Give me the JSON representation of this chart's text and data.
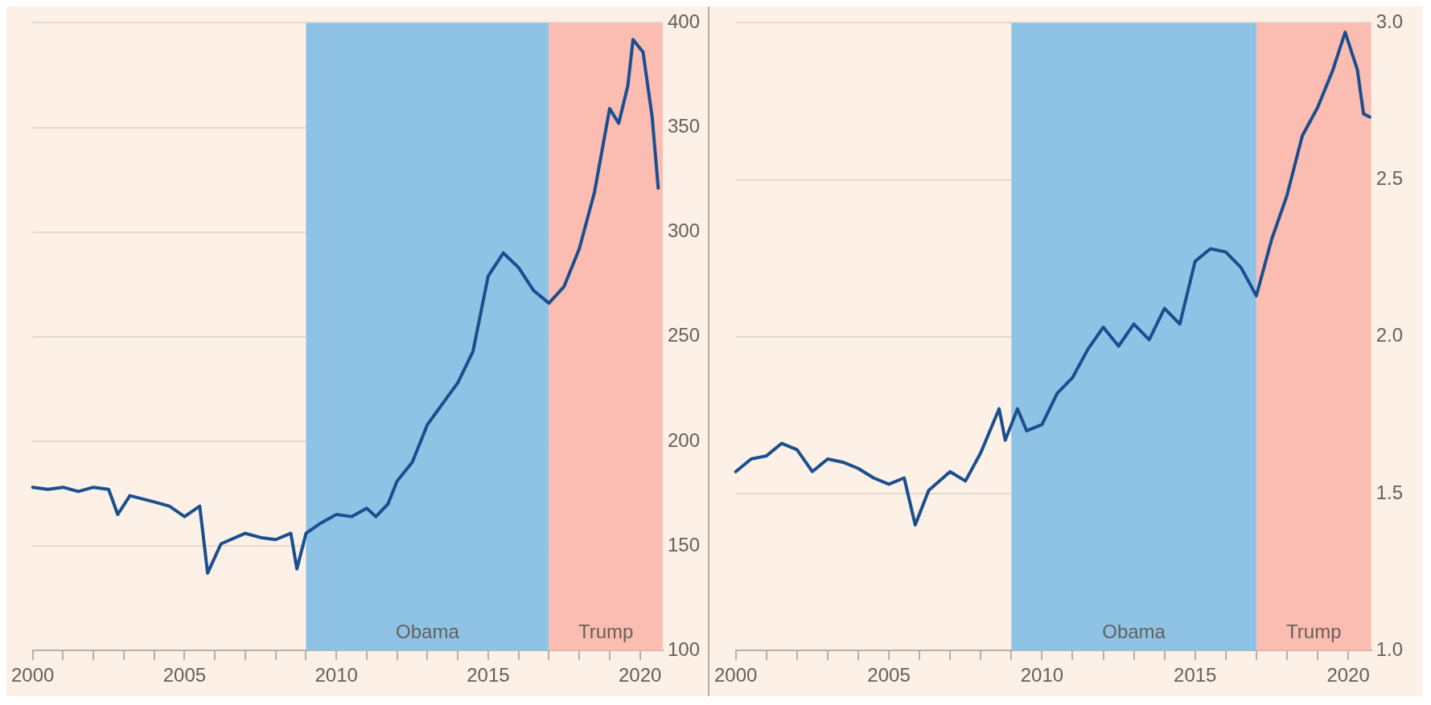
{
  "chart_data": [
    {
      "type": "line",
      "x": [
        2000,
        2000.5,
        2001,
        2001.5,
        2002,
        2002.5,
        2002.8,
        2003.2,
        2004,
        2004.5,
        2005,
        2005.5,
        2005.76,
        2006.2,
        2007,
        2007.5,
        2008,
        2008.5,
        2008.7,
        2009,
        2009.5,
        2010,
        2010.5,
        2011,
        2011.3,
        2011.7,
        2012,
        2012.5,
        2013,
        2013.3,
        2014,
        2014.5,
        2015,
        2015.5,
        2016,
        2016.5,
        2017,
        2017.5,
        2018,
        2018.5,
        2019,
        2019.3,
        2019.6,
        2019.77,
        2020.1,
        2020.4,
        2020.6
      ],
      "series": [
        {
          "color": "#1a4f8f",
          "values": [
            178,
            177,
            178,
            176,
            178,
            177,
            165,
            174,
            171,
            169,
            164,
            169,
            137,
            151,
            156,
            154,
            153,
            156,
            139,
            156,
            161,
            165,
            164,
            168,
            164,
            170,
            181,
            190,
            208,
            214,
            228,
            243,
            279,
            290,
            283,
            272,
            266,
            274,
            292,
            319,
            359,
            352,
            370,
            392,
            386,
            355,
            321
          ]
        }
      ],
      "xlim": [
        2000,
        2020.75
      ],
      "xticks": [
        2000,
        {
          "value": 2001,
          "label": null
        },
        {
          "value": 2002,
          "label": null
        },
        {
          "value": 2003,
          "label": null
        },
        {
          "value": 2004,
          "label": null
        },
        2005,
        {
          "value": 2006,
          "label": null
        },
        {
          "value": 2007,
          "label": null
        },
        {
          "value": 2008,
          "label": null
        },
        {
          "value": 2009,
          "label": null
        },
        2010,
        {
          "value": 2011,
          "label": null
        },
        {
          "value": 2012,
          "label": null
        },
        {
          "value": 2013,
          "label": null
        },
        {
          "value": 2014,
          "label": null
        },
        2015,
        {
          "value": 2016,
          "label": null
        },
        {
          "value": 2017,
          "label": null
        },
        {
          "value": 2018,
          "label": null
        },
        {
          "value": 2019,
          "label": null
        },
        2020
      ],
      "ylim": [
        100,
        400
      ],
      "yticks": [
        100,
        150,
        200,
        250,
        300,
        350,
        400
      ],
      "bands": [
        {
          "axis": "x",
          "from": 2009,
          "to": 2017,
          "label": "Obama",
          "color": "#8ec3e6"
        },
        {
          "axis": "x",
          "from": 2017,
          "to": 2020.75,
          "label": "Trump",
          "color": "#fbbcb2"
        }
      ],
      "grid": "y",
      "legend": false,
      "marker": "none",
      "line_style": "solid"
    },
    {
      "type": "line",
      "x": [
        2000,
        2000.5,
        2001,
        2001.5,
        2002,
        2002.5,
        2003,
        2003.5,
        2004,
        2004.5,
        2005,
        2005.5,
        2005.86,
        2006.3,
        2007,
        2007.5,
        2008,
        2008.6,
        2008.8,
        2009.2,
        2009.5,
        2010,
        2010.5,
        2011,
        2011.5,
        2012,
        2012.5,
        2013,
        2013.5,
        2014,
        2014.5,
        2015,
        2015.5,
        2016,
        2016.5,
        2017,
        2017.5,
        2018,
        2018.5,
        2019,
        2019.5,
        2019.9,
        2020.3,
        2020.5,
        2020.7
      ],
      "series": [
        {
          "color": "#1a4f8f",
          "values": [
            1.57,
            1.61,
            1.62,
            1.66,
            1.64,
            1.57,
            1.61,
            1.6,
            1.58,
            1.55,
            1.53,
            1.55,
            1.4,
            1.51,
            1.57,
            1.54,
            1.63,
            1.77,
            1.67,
            1.77,
            1.7,
            1.72,
            1.82,
            1.87,
            1.96,
            2.03,
            1.97,
            2.04,
            1.99,
            2.09,
            2.04,
            2.24,
            2.28,
            2.27,
            2.22,
            2.13,
            2.31,
            2.45,
            2.64,
            2.73,
            2.85,
            2.97,
            2.85,
            2.71,
            2.7
          ]
        }
      ],
      "xlim": [
        2000,
        2020.75
      ],
      "xticks": [
        2000,
        {
          "value": 2001,
          "label": null
        },
        {
          "value": 2002,
          "label": null
        },
        {
          "value": 2003,
          "label": null
        },
        {
          "value": 2004,
          "label": null
        },
        2005,
        {
          "value": 2006,
          "label": null
        },
        {
          "value": 2007,
          "label": null
        },
        {
          "value": 2008,
          "label": null
        },
        {
          "value": 2009,
          "label": null
        },
        2010,
        {
          "value": 2011,
          "label": null
        },
        {
          "value": 2012,
          "label": null
        },
        {
          "value": 2013,
          "label": null
        },
        {
          "value": 2014,
          "label": null
        },
        2015,
        {
          "value": 2016,
          "label": null
        },
        {
          "value": 2017,
          "label": null
        },
        {
          "value": 2018,
          "label": null
        },
        {
          "value": 2019,
          "label": null
        },
        2020
      ],
      "ylim": [
        1,
        3
      ],
      "yticks": [
        {
          "value": 1,
          "label": "1.0"
        },
        {
          "value": 1.5,
          "label": "1.5"
        },
        {
          "value": 2,
          "label": "2.0"
        },
        {
          "value": 2.5,
          "label": "2.5"
        },
        {
          "value": 3,
          "label": "3.0"
        }
      ],
      "bands": [
        {
          "axis": "x",
          "from": 2009,
          "to": 2017,
          "label": "Obama",
          "color": "#8ec3e6"
        },
        {
          "axis": "x",
          "from": 2017,
          "to": 2020.75,
          "label": "Trump",
          "color": "#fbbcb2"
        }
      ],
      "grid": "y",
      "legend": false,
      "marker": "none",
      "line_style": "solid"
    }
  ]
}
